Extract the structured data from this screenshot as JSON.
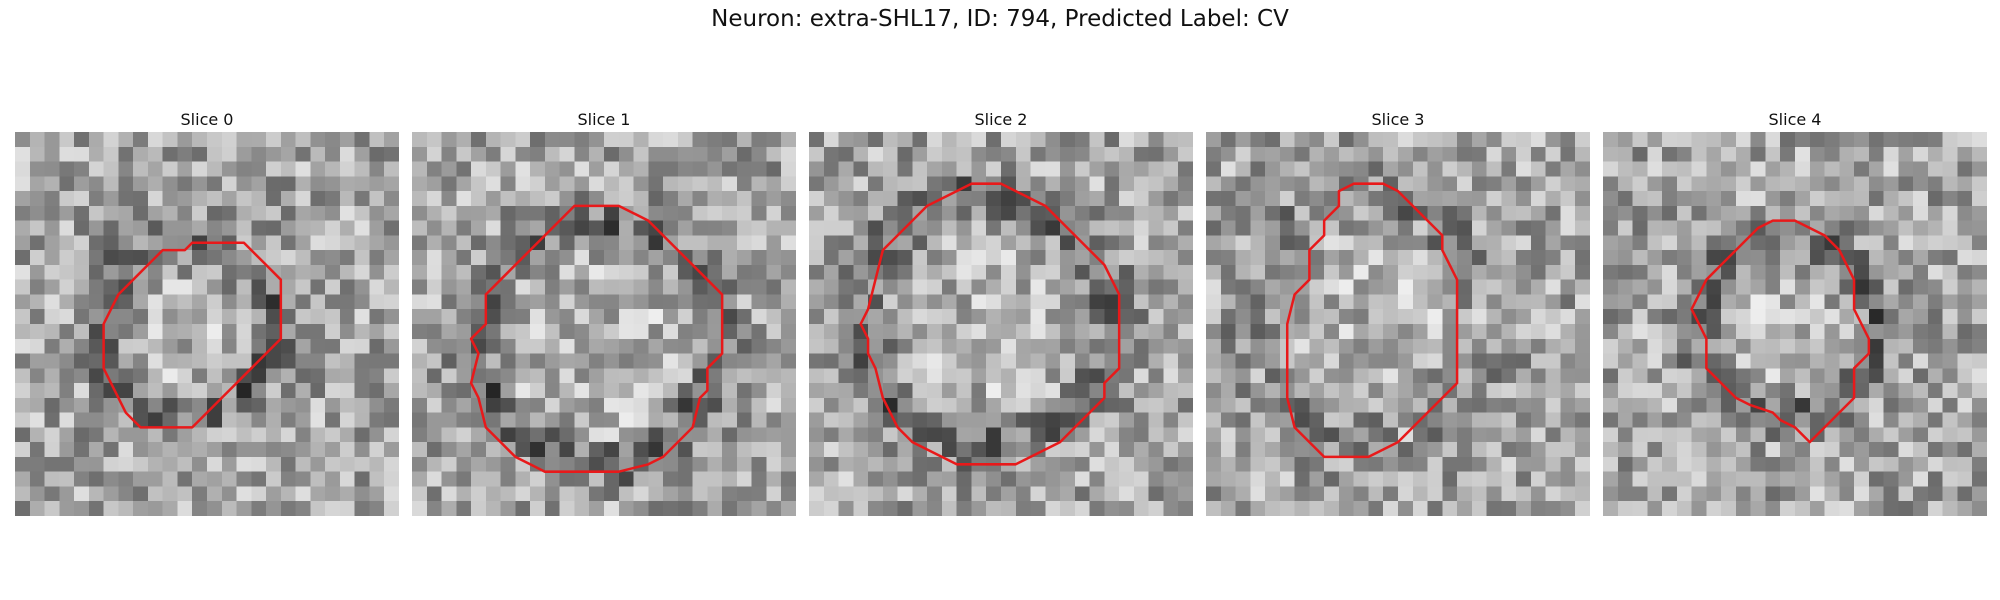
{
  "title": "Neuron: extra-SHL17, ID: 794, Predicted Label: CV",
  "contour_color": "#e8191a",
  "slices": [
    {
      "label": "Slice 0",
      "seed": 7,
      "dark_ring": true,
      "polygon": [
        [
          13.5,
          7.5
        ],
        [
          15.5,
          7.5
        ],
        [
          16,
          8
        ],
        [
          17,
          9
        ],
        [
          18,
          10
        ],
        [
          18,
          12
        ],
        [
          18,
          14
        ],
        [
          17,
          15
        ],
        [
          16,
          16
        ],
        [
          15,
          17
        ],
        [
          14,
          18
        ],
        [
          13,
          19
        ],
        [
          12,
          20
        ],
        [
          10.5,
          20
        ],
        [
          8.5,
          20
        ],
        [
          7.5,
          19
        ],
        [
          7,
          18
        ],
        [
          6.5,
          17
        ],
        [
          6,
          16
        ],
        [
          6,
          14
        ],
        [
          6,
          13
        ],
        [
          6.5,
          12
        ],
        [
          7,
          11
        ],
        [
          8,
          10
        ],
        [
          9,
          9
        ],
        [
          10,
          8
        ],
        [
          11.5,
          8
        ],
        [
          12,
          7.5
        ]
      ]
    },
    {
      "label": "Slice 1",
      "seed": 19,
      "dark_ring": true,
      "polygon": [
        [
          11,
          5
        ],
        [
          14,
          5
        ],
        [
          15,
          5.5
        ],
        [
          16,
          6
        ],
        [
          17,
          7
        ],
        [
          18,
          8
        ],
        [
          19,
          9
        ],
        [
          20,
          10
        ],
        [
          21,
          11
        ],
        [
          21,
          14
        ],
        [
          21,
          15
        ],
        [
          20,
          16
        ],
        [
          20,
          17.5
        ],
        [
          19.5,
          18
        ],
        [
          19,
          20
        ],
        [
          18,
          21
        ],
        [
          17,
          22
        ],
        [
          16,
          22.5
        ],
        [
          14,
          23
        ],
        [
          11,
          23
        ],
        [
          9,
          23
        ],
        [
          8,
          22.5
        ],
        [
          7,
          22
        ],
        [
          6,
          21
        ],
        [
          5,
          20
        ],
        [
          4.5,
          18
        ],
        [
          4,
          17
        ],
        [
          4.5,
          15
        ],
        [
          4,
          14
        ],
        [
          5,
          13
        ],
        [
          5,
          11
        ],
        [
          6,
          10
        ],
        [
          7,
          9
        ],
        [
          8,
          8
        ],
        [
          9,
          7
        ],
        [
          10,
          6
        ]
      ]
    },
    {
      "label": "Slice 2",
      "seed": 31,
      "dark_ring": true,
      "polygon": [
        [
          11,
          3.5
        ],
        [
          13,
          3.5
        ],
        [
          14,
          4
        ],
        [
          15,
          4.5
        ],
        [
          16,
          5
        ],
        [
          17,
          6
        ],
        [
          18,
          7
        ],
        [
          19,
          8
        ],
        [
          20,
          9
        ],
        [
          20.5,
          10
        ],
        [
          21,
          11
        ],
        [
          21,
          14
        ],
        [
          21,
          16
        ],
        [
          20,
          17
        ],
        [
          20,
          18
        ],
        [
          19,
          19
        ],
        [
          18,
          20
        ],
        [
          17,
          21
        ],
        [
          15,
          22
        ],
        [
          14,
          22.5
        ],
        [
          10,
          22.5
        ],
        [
          9,
          22
        ],
        [
          8,
          21.5
        ],
        [
          7,
          21
        ],
        [
          6,
          20
        ],
        [
          5.5,
          19
        ],
        [
          5,
          18
        ],
        [
          4.5,
          16
        ],
        [
          4,
          15
        ],
        [
          4,
          14
        ],
        [
          3.5,
          13
        ],
        [
          4,
          12
        ],
        [
          4.5,
          10
        ],
        [
          5,
          8
        ],
        [
          6,
          7
        ],
        [
          7,
          6
        ],
        [
          8,
          5
        ],
        [
          9,
          4.5
        ],
        [
          10,
          4
        ]
      ]
    },
    {
      "label": "Slice 3",
      "seed": 43,
      "dark_ring": false,
      "polygon": [
        [
          10,
          3.5
        ],
        [
          12,
          3.5
        ],
        [
          13,
          4
        ],
        [
          14,
          5
        ],
        [
          15,
          6
        ],
        [
          16,
          7
        ],
        [
          16,
          8
        ],
        [
          16.5,
          9
        ],
        [
          17,
          10
        ],
        [
          17,
          14
        ],
        [
          17,
          17
        ],
        [
          16,
          18
        ],
        [
          15,
          19
        ],
        [
          14,
          20
        ],
        [
          13,
          21
        ],
        [
          12,
          21.5
        ],
        [
          11,
          22
        ],
        [
          8,
          22
        ],
        [
          7.5,
          21.5
        ],
        [
          7,
          21
        ],
        [
          6,
          20
        ],
        [
          5.5,
          18
        ],
        [
          5.5,
          15
        ],
        [
          5.5,
          13
        ],
        [
          6,
          11
        ],
        [
          7,
          10
        ],
        [
          7,
          8
        ],
        [
          8,
          7
        ],
        [
          8,
          6
        ],
        [
          9,
          5
        ],
        [
          9,
          4
        ]
      ]
    },
    {
      "label": "Slice 4",
      "seed": 57,
      "dark_ring": true,
      "polygon": [
        [
          11.5,
          6
        ],
        [
          13,
          6
        ],
        [
          14,
          6.5
        ],
        [
          15,
          7
        ],
        [
          16,
          8
        ],
        [
          16.5,
          9
        ],
        [
          17,
          10
        ],
        [
          17,
          12
        ],
        [
          17.5,
          13
        ],
        [
          18,
          14
        ],
        [
          18,
          15
        ],
        [
          17,
          16
        ],
        [
          17,
          18
        ],
        [
          16,
          19
        ],
        [
          15,
          20
        ],
        [
          14,
          21
        ],
        [
          13,
          20
        ],
        [
          12,
          19.5
        ],
        [
          11.5,
          19
        ],
        [
          10,
          18.5
        ],
        [
          9,
          18
        ],
        [
          8,
          17
        ],
        [
          7,
          16
        ],
        [
          7,
          14
        ],
        [
          6,
          12
        ],
        [
          6.5,
          11
        ],
        [
          7,
          10
        ],
        [
          8,
          9
        ],
        [
          9,
          8
        ],
        [
          10,
          7
        ],
        [
          10.5,
          6.5
        ]
      ]
    }
  ]
}
